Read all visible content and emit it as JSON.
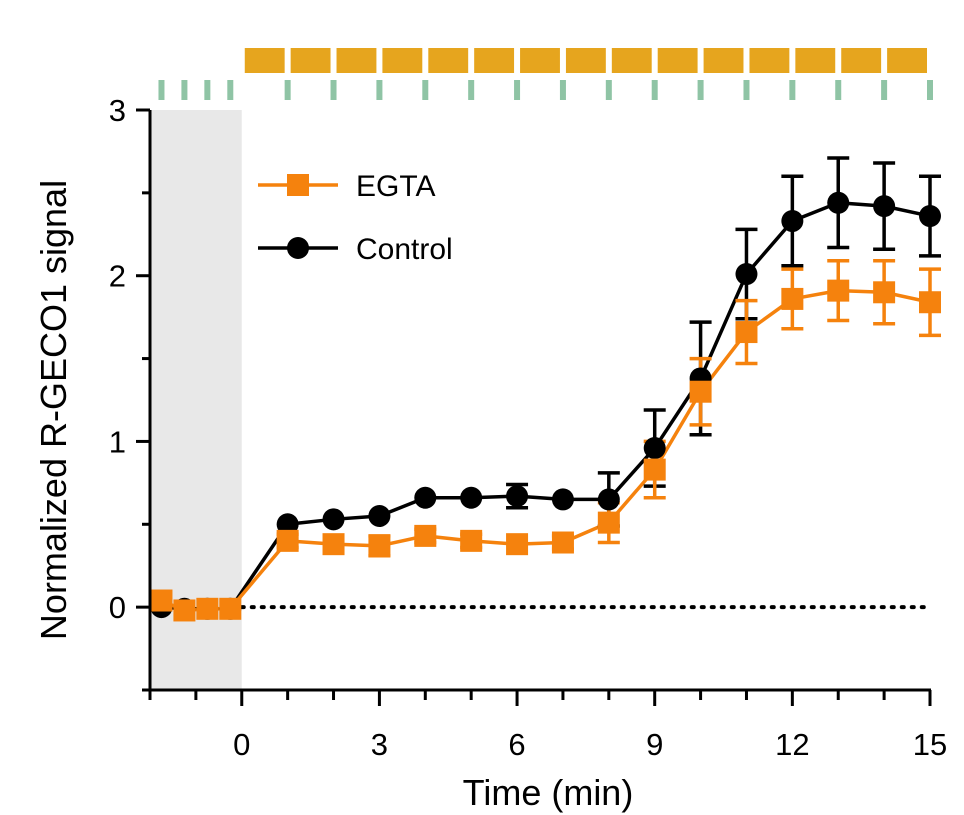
{
  "chart_data": {
    "type": "line",
    "title": "",
    "xlabel": "Time (min)",
    "ylabel": "Normalized R-GECO1 signal",
    "xlim": [
      -2,
      15
    ],
    "ylim": [
      -0.5,
      3
    ],
    "x_ticks": [
      0,
      3,
      6,
      9,
      12,
      15
    ],
    "y_ticks": [
      0,
      1,
      2,
      3
    ],
    "baseline_y": 0,
    "shaded_x_range": [
      -2,
      0
    ],
    "shaded_color": "#e8e8e8",
    "legend_position": "top-left",
    "series": [
      {
        "name": "EGTA",
        "color": "#f5820d",
        "marker": "square",
        "x": [
          -1.75,
          -1.25,
          -0.75,
          -0.25,
          1,
          2,
          3,
          4,
          5,
          6,
          7,
          8,
          9,
          10,
          11,
          12,
          13,
          14,
          15
        ],
        "y": [
          0.04,
          -0.02,
          -0.01,
          -0.01,
          0.4,
          0.38,
          0.37,
          0.43,
          0.4,
          0.38,
          0.39,
          0.51,
          0.83,
          1.3,
          1.66,
          1.86,
          1.91,
          1.9,
          1.84
        ],
        "err": [
          0.02,
          0.02,
          0.02,
          0.02,
          0.04,
          0.03,
          0.06,
          0.04,
          0.04,
          0.03,
          0.04,
          0.12,
          0.17,
          0.2,
          0.19,
          0.18,
          0.18,
          0.19,
          0.2
        ]
      },
      {
        "name": "Control",
        "color": "#000000",
        "marker": "circle",
        "x": [
          -1.75,
          -1.25,
          -0.75,
          -0.25,
          1,
          2,
          3,
          4,
          5,
          6,
          7,
          8,
          9,
          10,
          11,
          12,
          13,
          14,
          15
        ],
        "y": [
          0.0,
          -0.01,
          -0.01,
          -0.01,
          0.5,
          0.53,
          0.55,
          0.66,
          0.66,
          0.67,
          0.65,
          0.65,
          0.96,
          1.38,
          2.01,
          2.33,
          2.44,
          2.42,
          2.36
        ],
        "err": [
          0.01,
          0.01,
          0.01,
          0.01,
          0.02,
          0.02,
          0.02,
          0.02,
          0.02,
          0.07,
          0.02,
          0.16,
          0.23,
          0.34,
          0.27,
          0.27,
          0.27,
          0.26,
          0.24
        ]
      }
    ],
    "stimulus": {
      "bar_color": "#e6a51e",
      "bar_intervals": [
        [
          0,
          1
        ],
        [
          1,
          2
        ],
        [
          2,
          3
        ],
        [
          3,
          4
        ],
        [
          4,
          5
        ],
        [
          5,
          6
        ],
        [
          6,
          7
        ],
        [
          7,
          8
        ],
        [
          8,
          9
        ],
        [
          9,
          10
        ],
        [
          10,
          11
        ],
        [
          11,
          12
        ],
        [
          12,
          13
        ],
        [
          13,
          14
        ],
        [
          14,
          15
        ]
      ],
      "tick_color": "#8fc4a5",
      "tick_times": [
        -1.75,
        -1.25,
        -0.75,
        -0.25,
        1,
        2,
        3,
        4,
        5,
        6,
        7,
        8,
        9,
        10,
        11,
        12,
        13,
        14,
        15
      ]
    }
  }
}
